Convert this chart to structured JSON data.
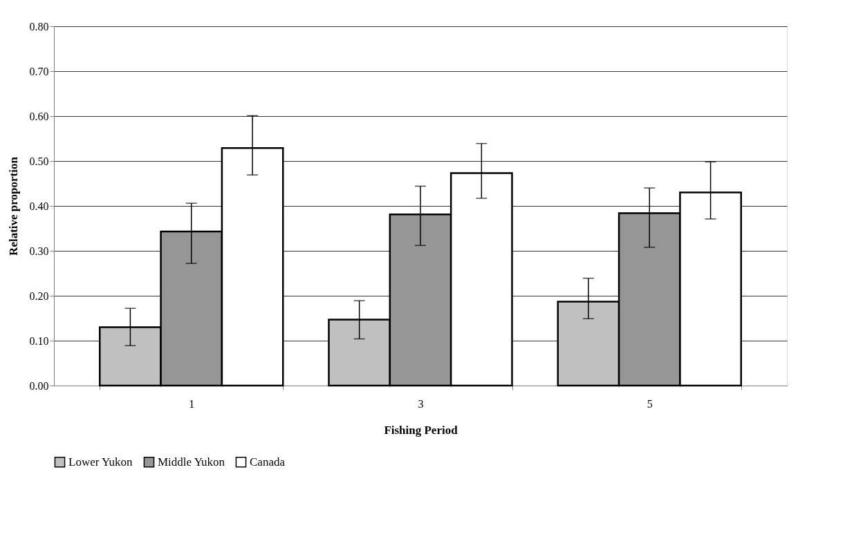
{
  "chart_data": {
    "type": "bar",
    "xlabel": "Fishing Period",
    "ylabel": "Relative proportion",
    "categories": [
      "1",
      "3",
      "5"
    ],
    "series": [
      {
        "name": "Lower Yukon",
        "color": "#c0c0c0",
        "values": [
          0.13,
          0.147,
          0.187
        ],
        "errors": [
          [
            0.089,
            0.172
          ],
          [
            0.104,
            0.189
          ],
          [
            0.149,
            0.239
          ]
        ]
      },
      {
        "name": "Middle Yukon",
        "color": "#969696",
        "values": [
          0.343,
          0.381,
          0.384
        ],
        "errors": [
          [
            0.272,
            0.406
          ],
          [
            0.312,
            0.444
          ],
          [
            0.308,
            0.44
          ]
        ]
      },
      {
        "name": "Canada",
        "color": "#ffffff",
        "values": [
          0.529,
          0.473,
          0.43
        ],
        "errors": [
          [
            0.469,
            0.601
          ],
          [
            0.417,
            0.539
          ],
          [
            0.371,
            0.498
          ]
        ]
      }
    ],
    "ylim": [
      0,
      0.8
    ],
    "yticks": [
      {
        "value": 0,
        "label": "0.00"
      },
      {
        "value": 0.1,
        "label": "0.10"
      },
      {
        "value": 0.2,
        "label": "0.20"
      },
      {
        "value": 0.3,
        "label": "0.30"
      },
      {
        "value": 0.4,
        "label": "0.40"
      },
      {
        "value": 0.5,
        "label": "0.50"
      },
      {
        "value": 0.6,
        "label": "0.60"
      },
      {
        "value": 0.7,
        "label": "0.70"
      },
      {
        "value": 0.8,
        "label": "0.80"
      }
    ],
    "grid": "y",
    "legend": "bottom"
  }
}
